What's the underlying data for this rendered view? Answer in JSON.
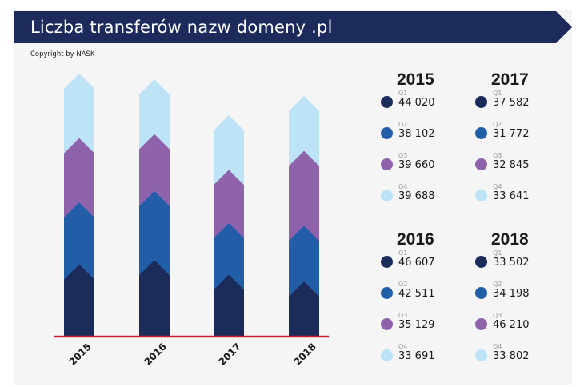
{
  "header": {
    "title": "Liczba transferów nazw domeny .pl",
    "copyright": "Copyright by NASK"
  },
  "colors": {
    "banner": "#1c2a5c",
    "q1": "#1b2b5a",
    "q2": "#225ea8",
    "q3": "#8e63ab",
    "q4": "#bde3f6",
    "baseline": "#c8202a"
  },
  "chart_data": {
    "type": "bar",
    "stacked": true,
    "title": "Liczba transferów nazw domeny .pl",
    "categories": [
      "2015",
      "2016",
      "2017",
      "2018"
    ],
    "series": [
      {
        "name": "Q1",
        "values": [
          44020,
          46607,
          37582,
          33502
        ]
      },
      {
        "name": "Q2",
        "values": [
          38102,
          42511,
          31772,
          34198
        ]
      },
      {
        "name": "Q3",
        "values": [
          39660,
          35129,
          32845,
          46210
        ]
      },
      {
        "name": "Q4",
        "values": [
          39688,
          33691,
          33641,
          33802
        ]
      }
    ],
    "xlabel": "",
    "ylabel": ""
  },
  "legend": [
    {
      "year": "2015",
      "entries": [
        {
          "q": "Q1",
          "value": "44 020"
        },
        {
          "q": "Q2",
          "value": "38 102"
        },
        {
          "q": "Q3",
          "value": "39 660"
        },
        {
          "q": "Q4",
          "value": "39 688"
        }
      ]
    },
    {
      "year": "2017",
      "entries": [
        {
          "q": "Q1",
          "value": "37 582"
        },
        {
          "q": "Q2",
          "value": "31 772"
        },
        {
          "q": "Q3",
          "value": "32 845"
        },
        {
          "q": "Q4",
          "value": "33 641"
        }
      ]
    },
    {
      "year": "2016",
      "entries": [
        {
          "q": "Q1",
          "value": "46 607"
        },
        {
          "q": "Q2",
          "value": "42 511"
        },
        {
          "q": "Q3",
          "value": "35 129"
        },
        {
          "q": "Q4",
          "value": "33 691"
        }
      ]
    },
    {
      "year": "2018",
      "entries": [
        {
          "q": "Q1",
          "value": "33 502"
        },
        {
          "q": "Q2",
          "value": "34 198"
        },
        {
          "q": "Q3",
          "value": "46 210"
        },
        {
          "q": "Q4",
          "value": "33 802"
        }
      ]
    }
  ]
}
